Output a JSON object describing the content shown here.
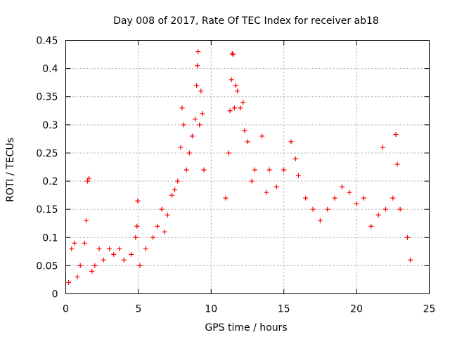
{
  "chart_data": {
    "type": "scatter",
    "title": "Day 008 of 2017, Rate Of TEC Index for receiver ab18",
    "xlabel": "GPS time / hours",
    "ylabel": "ROTI / TECUs",
    "xlim": [
      0,
      25
    ],
    "ylim": [
      0,
      0.45
    ],
    "x_ticks": [
      "0",
      "5",
      "10",
      "15",
      "20",
      "25"
    ],
    "y_ticks": [
      "0",
      "0.05",
      "0.1",
      "0.15",
      "0.2",
      "0.25",
      "0.3",
      "0.35",
      "0.4",
      "0.45"
    ],
    "grid": true,
    "marker": "+",
    "color": "#ff0000",
    "series": [
      {
        "points": [
          [
            0.2,
            0.02
          ],
          [
            0.4,
            0.08
          ],
          [
            0.6,
            0.09
          ],
          [
            0.8,
            0.03
          ],
          [
            1.0,
            0.05
          ],
          [
            1.3,
            0.09
          ],
          [
            1.4,
            0.13
          ],
          [
            1.5,
            0.2
          ],
          [
            1.6,
            0.205
          ],
          [
            1.8,
            0.04
          ],
          [
            2.0,
            0.05
          ],
          [
            2.3,
            0.08
          ],
          [
            2.6,
            0.06
          ],
          [
            3.0,
            0.08
          ],
          [
            3.3,
            0.07
          ],
          [
            3.7,
            0.08
          ],
          [
            4.0,
            0.06
          ],
          [
            4.5,
            0.07
          ],
          [
            4.8,
            0.1
          ],
          [
            4.9,
            0.12
          ],
          [
            4.95,
            0.165
          ],
          [
            5.1,
            0.05
          ],
          [
            5.5,
            0.08
          ],
          [
            6.0,
            0.1
          ],
          [
            6.3,
            0.12
          ],
          [
            6.6,
            0.15
          ],
          [
            6.8,
            0.11
          ],
          [
            7.0,
            0.14
          ],
          [
            7.3,
            0.175
          ],
          [
            7.5,
            0.185
          ],
          [
            7.7,
            0.2
          ],
          [
            7.9,
            0.26
          ],
          [
            8.0,
            0.33
          ],
          [
            8.1,
            0.3
          ],
          [
            8.3,
            0.22
          ],
          [
            8.5,
            0.25
          ],
          [
            8.7,
            0.28
          ],
          [
            8.9,
            0.31
          ],
          [
            9.0,
            0.37
          ],
          [
            9.05,
            0.405
          ],
          [
            9.1,
            0.43
          ],
          [
            9.2,
            0.3
          ],
          [
            9.3,
            0.36
          ],
          [
            9.4,
            0.32
          ],
          [
            9.5,
            0.22
          ],
          [
            11.0,
            0.17
          ],
          [
            11.2,
            0.25
          ],
          [
            11.3,
            0.325
          ],
          [
            11.4,
            0.38
          ],
          [
            11.45,
            0.427
          ],
          [
            11.5,
            0.425
          ],
          [
            11.6,
            0.33
          ],
          [
            11.7,
            0.37
          ],
          [
            11.8,
            0.36
          ],
          [
            12.0,
            0.33
          ],
          [
            12.2,
            0.34
          ],
          [
            12.3,
            0.29
          ],
          [
            12.5,
            0.27
          ],
          [
            12.8,
            0.2
          ],
          [
            13.0,
            0.22
          ],
          [
            13.5,
            0.28
          ],
          [
            13.8,
            0.18
          ],
          [
            14.0,
            0.22
          ],
          [
            14.5,
            0.19
          ],
          [
            15.0,
            0.22
          ],
          [
            15.5,
            0.27
          ],
          [
            15.8,
            0.24
          ],
          [
            16.0,
            0.21
          ],
          [
            16.5,
            0.17
          ],
          [
            17.0,
            0.15
          ],
          [
            17.5,
            0.13
          ],
          [
            18.0,
            0.15
          ],
          [
            18.5,
            0.17
          ],
          [
            19.0,
            0.19
          ],
          [
            19.5,
            0.18
          ],
          [
            20.0,
            0.16
          ],
          [
            20.5,
            0.17
          ],
          [
            21.0,
            0.12
          ],
          [
            21.5,
            0.14
          ],
          [
            21.8,
            0.26
          ],
          [
            22.0,
            0.15
          ],
          [
            22.5,
            0.17
          ],
          [
            22.7,
            0.283
          ],
          [
            22.8,
            0.23
          ],
          [
            23.0,
            0.15
          ],
          [
            23.5,
            0.1
          ],
          [
            23.7,
            0.06
          ]
        ]
      }
    ]
  }
}
